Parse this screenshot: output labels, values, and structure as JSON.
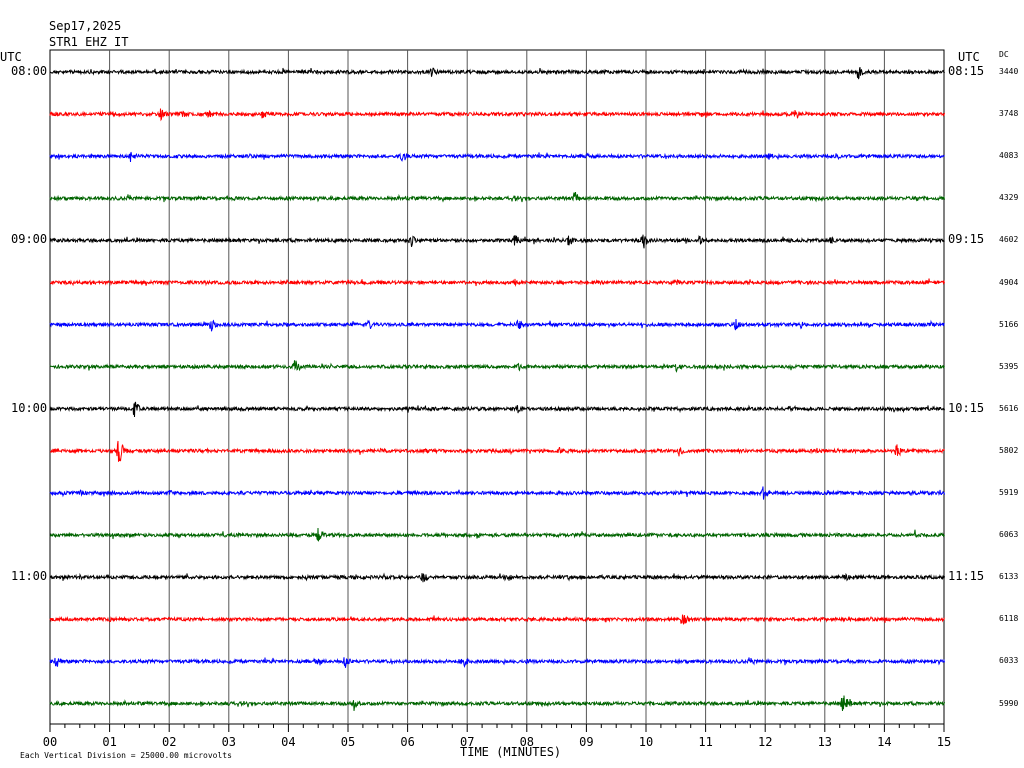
{
  "header": {
    "date": "Sep17,2025",
    "station": "STR1 EHZ IT"
  },
  "left_axis_title": "UTC",
  "right_axis_title": "UTC",
  "dc_title": "DC",
  "xaxis_label": "TIME (MINUTES)",
  "footer_note": "Each Vertical Division = 25000.00 microvolts",
  "chart_data": {
    "type": "line",
    "title": "Sep17,2025 STR1 EHZ IT",
    "xlabel": "TIME (MINUTES)",
    "xlim": [
      0,
      15
    ],
    "x_ticks": [
      "00",
      "01",
      "02",
      "03",
      "04",
      "05",
      "06",
      "07",
      "08",
      "09",
      "10",
      "11",
      "12",
      "13",
      "14",
      "15"
    ],
    "trace_colors": [
      "#000000",
      "#ff0000",
      "#0000ff",
      "#006400"
    ],
    "left_time_labels": [
      {
        "trace": 0,
        "label": "08:00"
      },
      {
        "trace": 4,
        "label": "09:00"
      },
      {
        "trace": 8,
        "label": "10:00"
      },
      {
        "trace": 12,
        "label": "11:00"
      }
    ],
    "right_time_labels": [
      {
        "trace": 0,
        "label": "08:15"
      },
      {
        "trace": 4,
        "label": "09:15"
      },
      {
        "trace": 8,
        "label": "10:15"
      },
      {
        "trace": 12,
        "label": "11:15"
      }
    ],
    "dc_values": [
      "3440",
      "3748",
      "4083",
      "4329",
      "4602",
      "4904",
      "5166",
      "5395",
      "5616",
      "5802",
      "5919",
      "6063",
      "6133",
      "6118",
      "6033",
      "5990"
    ],
    "events": [
      [
        [
          0.7,
          3
        ],
        [
          2.3,
          3
        ],
        [
          6.4,
          6
        ],
        [
          11.6,
          3
        ],
        [
          13.55,
          8
        ]
      ],
      [
        [
          1.85,
          8
        ],
        [
          2.2,
          5
        ],
        [
          2.65,
          5
        ],
        [
          3.55,
          7
        ],
        [
          4.95,
          3
        ],
        [
          9.0,
          3
        ],
        [
          12.5,
          7
        ]
      ],
      [
        [
          1.35,
          7
        ],
        [
          5.9,
          8
        ],
        [
          6.5,
          3
        ],
        [
          8.1,
          3
        ],
        [
          9.0,
          6
        ],
        [
          12.05,
          5
        ],
        [
          13.2,
          4
        ]
      ],
      [
        [
          3.1,
          3
        ],
        [
          6.0,
          3
        ],
        [
          7.8,
          3
        ],
        [
          8.8,
          7
        ],
        [
          14.5,
          4
        ]
      ],
      [
        [
          3.8,
          3
        ],
        [
          6.05,
          8
        ],
        [
          7.8,
          8
        ],
        [
          8.7,
          6
        ],
        [
          9.95,
          10
        ],
        [
          10.9,
          5
        ],
        [
          13.1,
          4
        ]
      ],
      [
        [
          5.8,
          3
        ],
        [
          7.8,
          3
        ],
        [
          10.5,
          6
        ],
        [
          14.7,
          3
        ]
      ],
      [
        [
          2.7,
          7
        ],
        [
          5.35,
          6
        ],
        [
          7.85,
          6
        ],
        [
          10.2,
          3
        ],
        [
          11.5,
          7
        ],
        [
          12.6,
          4
        ]
      ],
      [
        [
          4.1,
          9
        ],
        [
          7.85,
          5
        ],
        [
          10.5,
          6
        ],
        [
          12.5,
          3
        ]
      ],
      [
        [
          1.4,
          10
        ],
        [
          6.3,
          3
        ],
        [
          7.85,
          6
        ],
        [
          12.4,
          4
        ],
        [
          14.3,
          3
        ]
      ],
      [
        [
          1.15,
          14
        ],
        [
          2.65,
          3
        ],
        [
          5.55,
          4
        ],
        [
          6.3,
          3
        ],
        [
          8.55,
          5
        ],
        [
          10.55,
          6
        ],
        [
          14.2,
          9
        ]
      ],
      [
        [
          0.5,
          3
        ],
        [
          2.0,
          4
        ],
        [
          3.2,
          3
        ],
        [
          11.95,
          8
        ]
      ],
      [
        [
          4.5,
          8
        ],
        [
          7.2,
          3
        ],
        [
          14.5,
          3
        ]
      ],
      [
        [
          0.5,
          3
        ],
        [
          4.3,
          3
        ],
        [
          6.25,
          7
        ],
        [
          7.7,
          5
        ],
        [
          8.7,
          4
        ],
        [
          13.35,
          5
        ]
      ],
      [
        [
          1.0,
          3
        ],
        [
          10.6,
          9
        ],
        [
          12.0,
          3
        ]
      ],
      [
        [
          0.1,
          7
        ],
        [
          4.45,
          7
        ],
        [
          4.95,
          7
        ],
        [
          6.9,
          9
        ],
        [
          8.0,
          3
        ],
        [
          11.8,
          3
        ]
      ],
      [
        [
          3.0,
          3
        ],
        [
          5.1,
          8
        ],
        [
          13.3,
          14
        ]
      ]
    ]
  }
}
